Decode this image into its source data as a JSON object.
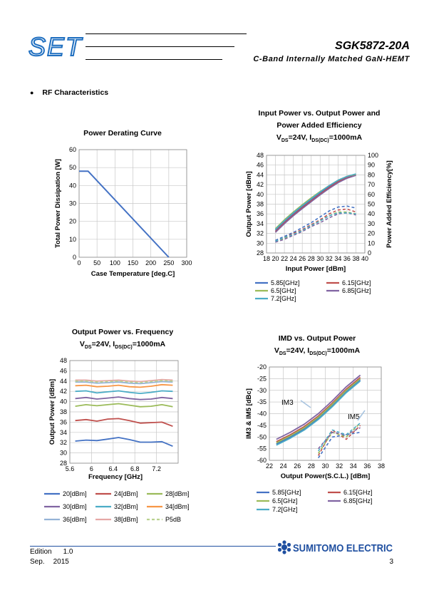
{
  "header": {
    "logo_text": "SET",
    "part_number": "SGK5872-20A",
    "subtitle": "C-Band Internally Matched GaN-HEMT"
  },
  "section": {
    "bullet": "●",
    "title": "RF Characteristics"
  },
  "colors": {
    "blue": "#4472c4",
    "red": "#c0504d",
    "green": "#9bbb59",
    "purple": "#8064a2",
    "teal": "#4bacc6",
    "orange": "#f79646",
    "lightblue": "#95b3d7",
    "pink": "#e6a8a6",
    "lightgreen": "#b9d28f",
    "sumitomo": "#1f4fa0"
  },
  "charts": {
    "derating": {
      "title": "Power Derating Curve",
      "xlabel": "Case Temperature [deg.C]",
      "ylabel": "Total Power Dissipation [W]"
    },
    "pinpout": {
      "title_lines": [
        "Input Power vs. Output Power and",
        "Power Added Efficiency"
      ],
      "cond_vds": "V",
      "cond_vds_sub": "DS",
      "cond_vds_val": "=24V, I",
      "cond_id_sub": "DS(DC)",
      "cond_id_val": "=1000mA",
      "xlabel": "Input Power [dBm]",
      "ylabel": "Output Power [dBm]",
      "y2label": "Power Added Efficiency[%]",
      "legend": [
        "5.85[GHz]",
        "6.15[GHz]",
        "6.5[GHz]",
        "6.85[GHz]",
        "7.2[GHz]"
      ]
    },
    "freq": {
      "title": "Output Power vs. Frequency",
      "cond_vds": "V",
      "cond_vds_sub": "DS",
      "cond_vds_val": "=24V, I",
      "cond_id_sub": "DS(DC)",
      "cond_id_val": "=1000mA",
      "xlabel": "Frequency [GHz]",
      "ylabel": "Output Power [dBm]",
      "legend": [
        "20[dBm]",
        "24[dBm]",
        "28[dBm]",
        "30[dBm]",
        "32[dBm]",
        "34[dBm]",
        "36[dBm]",
        "38[dBm]",
        "P5dB"
      ]
    },
    "imd": {
      "title": "IMD vs. Output Power",
      "cond_vds": "V",
      "cond_vds_sub": "DS",
      "cond_vds_val": "=24V, I",
      "cond_id_sub": "DS(DC)",
      "cond_id_val": "=1000mA",
      "xlabel": "Output Power(S.C.L.) [dBm]",
      "ylabel": "IM3 & IM5 [dBc]",
      "annotation_im3": "IM3",
      "annotation_im5": "IM5",
      "legend": [
        "5.85[GHz]",
        "6.15[GHz]",
        "6.5[GHz]",
        "6.85[GHz]",
        "7.2[GHz]"
      ]
    }
  },
  "chart_data": [
    {
      "type": "line",
      "title": "Power Derating Curve",
      "xlabel": "Case Temperature [deg.C]",
      "ylabel": "Total Power Dissipation [W]",
      "xlim": [
        0,
        300
      ],
      "ylim": [
        0,
        60
      ],
      "xticks": [
        "0",
        "50",
        "100",
        "150",
        "200",
        "250",
        "300"
      ],
      "yticks": [
        "0",
        "10",
        "20",
        "30",
        "40",
        "50",
        "60"
      ],
      "grid": true,
      "series": [
        {
          "x": [
            0,
            25,
            250
          ],
          "y": [
            48,
            48,
            0
          ]
        }
      ]
    },
    {
      "type": "line",
      "title": "Input Power vs. Output Power and Power Added Efficiency",
      "xlabel": "Input Power [dBm]",
      "ylabel": "Output Power [dBm]",
      "y2label": "Power Added Efficiency[%]",
      "xlim": [
        18,
        40
      ],
      "ylim": [
        28,
        48
      ],
      "y2lim": [
        0,
        100
      ],
      "xticks": [
        "18",
        "20",
        "22",
        "24",
        "26",
        "28",
        "30",
        "32",
        "34",
        "36",
        "38",
        "40"
      ],
      "yticks": [
        "28",
        "30",
        "32",
        "34",
        "36",
        "38",
        "40",
        "42",
        "44",
        "46",
        "48"
      ],
      "y2ticks": [
        "0",
        "10",
        "20",
        "30",
        "40",
        "50",
        "60",
        "70",
        "80",
        "90",
        "100"
      ],
      "grid": true,
      "legend": "bottom",
      "series": [
        {
          "name": "5.85[GHz]",
          "x": [
            20,
            22,
            24,
            26,
            28,
            30,
            32,
            34,
            36,
            38
          ],
          "pout": [
            32.6,
            34.4,
            36.0,
            37.5,
            38.9,
            40.3,
            41.6,
            42.8,
            43.6,
            44.1
          ],
          "pae": [
            13,
            17,
            21,
            26,
            31,
            37,
            43,
            47,
            48,
            46
          ]
        },
        {
          "name": "6.15[GHz]",
          "x": [
            20,
            22,
            24,
            26,
            28,
            30,
            32,
            34,
            36,
            38
          ],
          "pout": [
            32.4,
            34.2,
            35.8,
            37.3,
            38.7,
            40.1,
            41.4,
            42.6,
            43.4,
            44.0
          ],
          "pae": [
            12,
            16,
            20,
            24,
            29,
            34,
            40,
            44,
            45,
            42
          ]
        },
        {
          "name": "6.5[GHz]",
          "x": [
            20,
            22,
            24,
            26,
            28,
            30,
            32,
            34,
            36,
            38
          ],
          "pout": [
            33.0,
            34.8,
            36.4,
            37.9,
            39.3,
            40.6,
            41.8,
            42.9,
            43.7,
            44.1
          ],
          "pae": [
            12,
            15,
            19,
            23,
            28,
            33,
            38,
            42,
            42,
            40
          ]
        },
        {
          "name": "6.85[GHz]",
          "x": [
            20,
            22,
            24,
            26,
            28,
            30,
            32,
            34,
            36,
            38
          ],
          "pout": [
            32.2,
            34.0,
            35.6,
            37.1,
            38.5,
            39.9,
            41.2,
            42.4,
            43.3,
            43.9
          ],
          "pae": [
            11,
            14,
            18,
            22,
            27,
            31,
            36,
            40,
            41,
            39
          ]
        },
        {
          "name": "7.2[GHz]",
          "x": [
            20,
            22,
            24,
            26,
            28,
            30,
            32,
            34,
            36,
            38
          ],
          "pout": [
            32.8,
            34.6,
            36.2,
            37.7,
            39.1,
            40.5,
            41.8,
            42.9,
            43.7,
            44.2
          ],
          "pae": [
            12,
            16,
            19,
            23,
            28,
            33,
            38,
            41,
            41,
            40
          ]
        }
      ]
    },
    {
      "type": "line",
      "title": "Output Power vs. Frequency",
      "xlabel": "Frequency [GHz]",
      "ylabel": "Output Power [dBm]",
      "xlim": [
        5.6,
        7.6
      ],
      "ylim": [
        28,
        48
      ],
      "xticks": [
        "5.6",
        "6",
        "6.4",
        "6.8",
        "7.2"
      ],
      "yticks": [
        "28",
        "30",
        "32",
        "34",
        "36",
        "38",
        "40",
        "42",
        "44",
        "46",
        "48"
      ],
      "grid": true,
      "legend": "bottom",
      "series": [
        {
          "name": "20[dBm]",
          "x": [
            5.7,
            5.9,
            6.1,
            6.3,
            6.5,
            6.7,
            6.9,
            7.1,
            7.3,
            7.5
          ],
          "y": [
            32.3,
            32.5,
            32.4,
            32.7,
            33.0,
            32.6,
            32.1,
            32.1,
            32.2,
            31.3
          ]
        },
        {
          "name": "24[dBm]",
          "x": [
            5.7,
            5.9,
            6.1,
            6.3,
            6.5,
            6.7,
            6.9,
            7.1,
            7.3,
            7.5
          ],
          "y": [
            36.3,
            36.5,
            36.2,
            36.6,
            36.7,
            36.3,
            35.8,
            35.9,
            36.0,
            35.2
          ]
        },
        {
          "name": "28[dBm]",
          "x": [
            5.7,
            5.9,
            6.1,
            6.3,
            6.5,
            6.7,
            6.9,
            7.1,
            7.3,
            7.5
          ],
          "y": [
            39.1,
            39.4,
            39.2,
            39.4,
            39.6,
            39.3,
            39.0,
            39.1,
            39.4,
            39.0
          ]
        },
        {
          "name": "30[dBm]",
          "x": [
            5.7,
            5.9,
            6.1,
            6.3,
            6.5,
            6.7,
            6.9,
            7.1,
            7.3,
            7.5
          ],
          "y": [
            40.6,
            40.8,
            40.5,
            40.7,
            40.9,
            40.6,
            40.4,
            40.5,
            40.8,
            40.6
          ]
        },
        {
          "name": "32[dBm]",
          "x": [
            5.7,
            5.9,
            6.1,
            6.3,
            6.5,
            6.7,
            6.9,
            7.1,
            7.3,
            7.5
          ],
          "y": [
            42.0,
            42.1,
            41.7,
            41.9,
            42.1,
            41.8,
            41.6,
            41.8,
            42.1,
            42.0
          ]
        },
        {
          "name": "34[dBm]",
          "x": [
            5.7,
            5.9,
            6.1,
            6.3,
            6.5,
            6.7,
            6.9,
            7.1,
            7.3,
            7.5
          ],
          "y": [
            43.1,
            43.2,
            42.9,
            43.0,
            43.2,
            42.9,
            42.8,
            43.0,
            43.3,
            43.2
          ]
        },
        {
          "name": "36[dBm]",
          "x": [
            5.7,
            5.9,
            6.1,
            6.3,
            6.5,
            6.7,
            6.9,
            7.1,
            7.3,
            7.5
          ],
          "y": [
            43.8,
            43.8,
            43.6,
            43.7,
            43.8,
            43.6,
            43.5,
            43.7,
            43.9,
            43.8
          ]
        },
        {
          "name": "38[dBm]",
          "x": [
            5.7,
            5.9,
            6.1,
            6.3,
            6.5,
            6.7,
            6.9,
            7.1,
            7.3,
            7.5
          ],
          "y": [
            44.2,
            44.2,
            44.0,
            44.1,
            44.2,
            44.0,
            43.9,
            44.1,
            44.3,
            44.2
          ]
        },
        {
          "name": "P5dB",
          "x": [
            5.7,
            5.9,
            6.1,
            6.3,
            6.5,
            6.7,
            6.9,
            7.1,
            7.3,
            7.5
          ],
          "y": [
            44.0,
            44.0,
            43.8,
            43.9,
            44.0,
            43.8,
            43.7,
            43.9,
            44.1,
            44.0
          ]
        }
      ]
    },
    {
      "type": "line",
      "title": "IMD vs. Output Power",
      "xlabel": "Output Power(S.C.L.) [dBm]",
      "ylabel": "IM3 & IM5 [dBc]",
      "xlim": [
        22,
        38
      ],
      "ylim": [
        -60,
        -20
      ],
      "xticks": [
        "22",
        "24",
        "26",
        "28",
        "30",
        "32",
        "34",
        "36",
        "38"
      ],
      "yticks": [
        "-20",
        "-25",
        "-30",
        "-35",
        "-40",
        "-45",
        "-50",
        "-55",
        "-60"
      ],
      "grid": true,
      "legend": "bottom",
      "series": [
        {
          "name": "5.85[GHz]",
          "x": [
            23,
            25,
            27,
            29,
            31,
            33,
            35
          ],
          "im3": [
            -53,
            -50,
            -46.5,
            -42,
            -36.5,
            -30.5,
            -25.5
          ],
          "im5": [
            null,
            null,
            null,
            -59,
            -50,
            -49,
            -48
          ]
        },
        {
          "name": "6.15[GHz]",
          "x": [
            23,
            25,
            27,
            29,
            31,
            33,
            35
          ],
          "im3": [
            -52,
            -49,
            -45.5,
            -41,
            -35.5,
            -29.5,
            -24.5
          ],
          "im5": [
            null,
            null,
            null,
            -58,
            -47,
            -51,
            -45
          ]
        },
        {
          "name": "6.5[GHz]",
          "x": [
            23,
            25,
            27,
            29,
            31,
            33,
            35
          ],
          "im3": [
            -52.5,
            -49.5,
            -46,
            -41.5,
            -36,
            -30,
            -25
          ],
          "im5": [
            null,
            null,
            null,
            -57,
            -48,
            -50,
            -44
          ]
        },
        {
          "name": "6.85[GHz]",
          "x": [
            23,
            25,
            27,
            29,
            31,
            33,
            35
          ],
          "im3": [
            -51,
            -48,
            -44.5,
            -40,
            -34.5,
            -28.5,
            -23.5
          ],
          "im5": [
            null,
            null,
            null,
            -55,
            -48,
            -49,
            -46
          ]
        },
        {
          "name": "7.2[GHz]",
          "x": [
            23,
            25,
            27,
            29,
            31,
            33,
            35
          ],
          "im3": [
            -53.5,
            -50.5,
            -47,
            -42.5,
            -37,
            -31,
            -26
          ],
          "im5": [
            null,
            null,
            null,
            -56,
            -47,
            -49,
            -44
          ]
        }
      ]
    }
  ],
  "footer": {
    "edition_label": "Edition",
    "edition_value": "1.0",
    "date_month": "Sep.",
    "date_year": "2015",
    "company": "SUMITOMO ELECTRIC",
    "page_number": "3"
  }
}
